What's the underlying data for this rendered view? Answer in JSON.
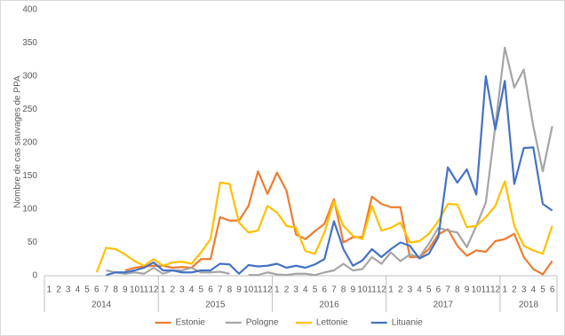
{
  "chart_data": {
    "type": "line",
    "y_label": "Nombre de cas sauvages de PPA",
    "ylim": [
      0,
      400
    ],
    "yticks": [
      0,
      50,
      100,
      150,
      200,
      250,
      300,
      350,
      400
    ],
    "grid": false,
    "legend": "bottom",
    "groups": [
      {
        "name": "2014",
        "categories": [
          "1",
          "2",
          "3",
          "4",
          "5",
          "6",
          "7",
          "8",
          "9",
          "10",
          "11",
          "12"
        ]
      },
      {
        "name": "2015",
        "categories": [
          "1",
          "2",
          "3",
          "4",
          "5",
          "6",
          "7",
          "8",
          "9",
          "10",
          "11",
          "12"
        ]
      },
      {
        "name": "2016",
        "categories": [
          "1",
          "2",
          "3",
          "4",
          "5",
          "6",
          "7",
          "8",
          "9",
          "10",
          "11",
          "12"
        ]
      },
      {
        "name": "2017",
        "categories": [
          "1",
          "2",
          "3",
          "4",
          "5",
          "6",
          "7",
          "8",
          "9",
          "10",
          "11",
          "12"
        ]
      },
      {
        "name": "2018",
        "categories": [
          "1",
          "2",
          "3",
          "4",
          "5",
          "6"
        ]
      }
    ],
    "series": [
      {
        "name": "Estonie",
        "color": "#ED7D31",
        "values": [
          null,
          null,
          null,
          null,
          null,
          null,
          null,
          null,
          8,
          12,
          14,
          15,
          15,
          12,
          13,
          12,
          25,
          25,
          88,
          83,
          83,
          105,
          157,
          123,
          155,
          128,
          62,
          55,
          67,
          78,
          115,
          50,
          58,
          58,
          119,
          108,
          103,
          103,
          28,
          28,
          40,
          62,
          70,
          45,
          30,
          38,
          36,
          52,
          55,
          63,
          28,
          10,
          2,
          22
        ]
      },
      {
        "name": "Pologne",
        "color": "#A5A5A5",
        "values": [
          null,
          null,
          null,
          null,
          null,
          null,
          8,
          5,
          3,
          5,
          3,
          12,
          3,
          8,
          8,
          12,
          5,
          5,
          6,
          3,
          null,
          1,
          1,
          5,
          2,
          1,
          3,
          3,
          1,
          5,
          8,
          18,
          8,
          10,
          28,
          18,
          35,
          22,
          32,
          28,
          48,
          72,
          68,
          65,
          43,
          75,
          110,
          225,
          343,
          283,
          310,
          225,
          157,
          225
        ]
      },
      {
        "name": "Lettonie",
        "color": "#FFC000",
        "values": [
          null,
          null,
          null,
          null,
          null,
          5,
          42,
          40,
          32,
          22,
          15,
          25,
          15,
          20,
          21,
          18,
          35,
          55,
          140,
          138,
          80,
          65,
          68,
          105,
          95,
          75,
          72,
          37,
          33,
          65,
          112,
          75,
          60,
          55,
          105,
          68,
          72,
          80,
          50,
          52,
          63,
          82,
          108,
          107,
          73,
          75,
          88,
          105,
          142,
          75,
          45,
          38,
          33,
          75
        ]
      },
      {
        "name": "Lituanie",
        "color": "#4472C4",
        "values": [
          null,
          null,
          null,
          null,
          null,
          null,
          1,
          5,
          5,
          8,
          12,
          20,
          8,
          8,
          5,
          5,
          8,
          8,
          18,
          17,
          3,
          16,
          14,
          15,
          18,
          12,
          15,
          12,
          17,
          25,
          82,
          40,
          15,
          23,
          40,
          28,
          40,
          50,
          45,
          26,
          33,
          58,
          163,
          140,
          160,
          122,
          300,
          220,
          293,
          138,
          192,
          193,
          108,
          98
        ]
      }
    ]
  }
}
